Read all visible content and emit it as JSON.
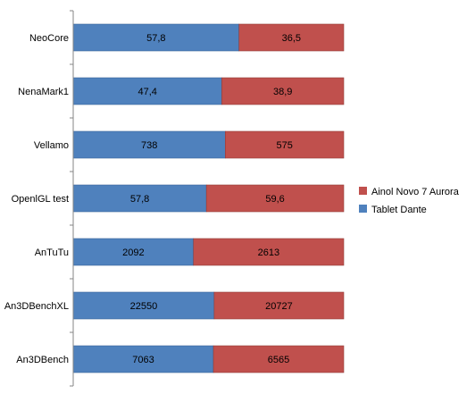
{
  "chart_data": {
    "type": "bar",
    "orientation": "horizontal",
    "stacked": "percent",
    "title": "",
    "xlabel": "",
    "ylabel": "",
    "grid": false,
    "legend_position": "right",
    "categories": [
      "NeoCore",
      "NenaMark1",
      "Vellamo",
      "OpenlGL test",
      "AnTuTu",
      "An3DBenchXL",
      "An3DBench"
    ],
    "series": [
      {
        "name": "Tablet Dante",
        "color": "#4f81bd",
        "values": [
          57.8,
          47.4,
          738,
          57.8,
          2092,
          22550,
          7063
        ],
        "labels": [
          "57,8",
          "47,4",
          "738",
          "57,8",
          "2092",
          "22550",
          "7063"
        ]
      },
      {
        "name": "Ainol Novo 7 Aurora",
        "color": "#c0504d",
        "values": [
          36.5,
          38.9,
          575,
          59.6,
          2613,
          20727,
          6565
        ],
        "labels": [
          "36,5",
          "38,9",
          "575",
          "59,6",
          "2613",
          "20727",
          "6565"
        ]
      }
    ],
    "legend_order": [
      "Ainol Novo 7 Aurora",
      "Tablet Dante"
    ]
  }
}
